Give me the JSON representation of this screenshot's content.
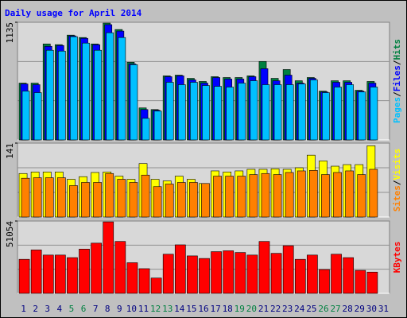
{
  "title": "Daily usage for April 2014",
  "x_axis": {
    "categories": [
      "1",
      "2",
      "3",
      "4",
      "5",
      "6",
      "7",
      "8",
      "9",
      "10",
      "11",
      "12",
      "13",
      "14",
      "15",
      "16",
      "17",
      "18",
      "19",
      "20",
      "21",
      "22",
      "23",
      "24",
      "25",
      "26",
      "27",
      "28",
      "29",
      "30",
      "31"
    ],
    "label_colors": [
      "#000080",
      "#000080",
      "#000080",
      "#000080",
      "#008040",
      "#008040",
      "#000080",
      "#000080",
      "#000080",
      "#000080",
      "#000080",
      "#008040",
      "#008040",
      "#000080",
      "#000080",
      "#000080",
      "#000080",
      "#000080",
      "#008040",
      "#008040",
      "#000080",
      "#000080",
      "#000080",
      "#000080",
      "#000080",
      "#008040",
      "#008040",
      "#000080",
      "#000080",
      "#000080",
      "#000080"
    ]
  },
  "legend_separator": "/",
  "chart_data": [
    {
      "type": "bar",
      "ylim": [
        0,
        1135
      ],
      "yticks": [
        1135
      ],
      "series": [
        {
          "name": "Hits",
          "color": "#008040",
          "values": [
            548,
            548,
            926,
            919,
            1011,
            988,
            926,
            1127,
            1065,
            749,
            309,
            293,
            618,
            625,
            594,
            564,
            610,
            602,
            602,
            618,
            757,
            594,
            679,
            571,
            602,
            471,
            571,
            571,
            479,
            564,
            null
          ]
        },
        {
          "name": "Files",
          "color": "#0000ff",
          "values": [
            540,
            533,
            903,
            911,
            1004,
            980,
            919,
            1112,
            1050,
            733,
            293,
            286,
            610,
            618,
            579,
            548,
            602,
            587,
            587,
            610,
            687,
            571,
            625,
            548,
            594,
            463,
            556,
            556,
            471,
            548,
            null
          ]
        },
        {
          "name": "Pages",
          "color": "#00c0ff",
          "values": [
            471,
            456,
            865,
            857,
            996,
            934,
            865,
            1034,
            988,
            726,
            208,
            278,
            556,
            533,
            556,
            525,
            517,
            510,
            548,
            571,
            533,
            533,
            533,
            540,
            579,
            456,
            510,
            533,
            463,
            510,
            null
          ]
        }
      ]
    },
    {
      "type": "bar",
      "ylim": [
        0,
        141
      ],
      "yticks": [
        141
      ],
      "series": [
        {
          "name": "Visits",
          "color": "#ffff00",
          "values": [
            83,
            86,
            86,
            86,
            72,
            77,
            85,
            86,
            78,
            72,
            102,
            72,
            69,
            78,
            72,
            64,
            88,
            86,
            88,
            91,
            91,
            92,
            91,
            94,
            118,
            107,
            97,
            100,
            100,
            136,
            null
          ]
        },
        {
          "name": "Sites",
          "color": "#ff8000",
          "values": [
            74,
            75,
            75,
            75,
            60,
            66,
            66,
            83,
            72,
            66,
            80,
            58,
            63,
            66,
            66,
            64,
            78,
            78,
            78,
            81,
            83,
            81,
            85,
            88,
            89,
            81,
            85,
            88,
            81,
            91,
            null
          ]
        }
      ]
    },
    {
      "type": "bar",
      "ylim": [
        0,
        51054
      ],
      "yticks": [
        51054
      ],
      "series": [
        {
          "name": "KBytes",
          "color": "#ff0000",
          "values": [
            24024,
            30631,
            27027,
            27027,
            25225,
            31231,
            35435,
            50450,
            36637,
            21622,
            17417,
            10811,
            27628,
            34234,
            26426,
            24625,
            29429,
            30030,
            28829,
            27027,
            36637,
            28228,
            33634,
            24024,
            27027,
            16817,
            27628,
            25225,
            16216,
            15015,
            null
          ]
        }
      ]
    }
  ]
}
